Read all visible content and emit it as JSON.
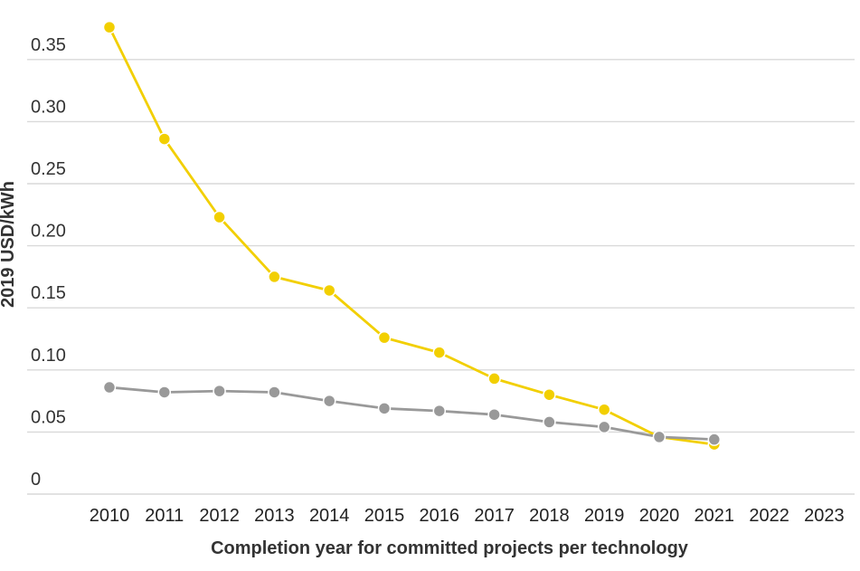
{
  "chart_data": {
    "type": "line",
    "xlabel": "Completion year for committed projects per technology",
    "ylabel": "2019 USD/kWh",
    "categories": [
      "2010",
      "2011",
      "2012",
      "2013",
      "2014",
      "2015",
      "2016",
      "2017",
      "2018",
      "2019",
      "2020",
      "2021",
      "2022",
      "2023"
    ],
    "y_ticks": [
      "0",
      "0.05",
      "0.10",
      "0.15",
      "0.20",
      "0.25",
      "0.30",
      "0.35"
    ],
    "ylim": [
      0,
      0.38
    ],
    "grid": true,
    "series": [
      {
        "color": "#f2cf00",
        "values": [
          0.376,
          0.286,
          0.223,
          0.175,
          0.164,
          0.126,
          0.114,
          0.093,
          0.08,
          0.068,
          0.046,
          0.04,
          null,
          null
        ]
      },
      {
        "color": "#999999",
        "values": [
          0.086,
          0.082,
          0.083,
          0.082,
          0.075,
          0.069,
          0.067,
          0.064,
          0.058,
          0.054,
          0.046,
          0.044,
          null,
          null
        ]
      }
    ]
  }
}
